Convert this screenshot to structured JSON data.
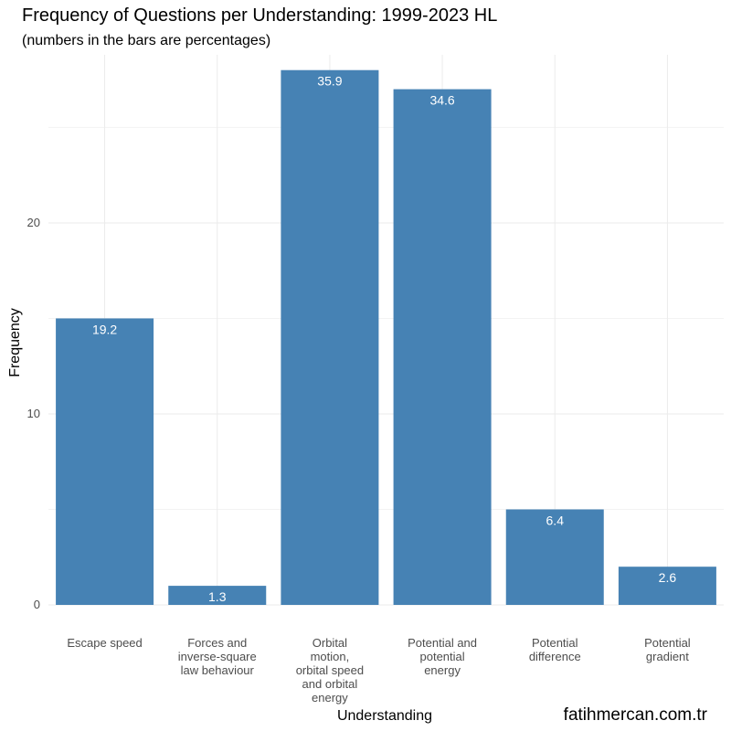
{
  "chart_data": {
    "type": "bar",
    "title": "Frequency of Questions per Understanding: 1999-2023 HL",
    "subtitle": "(numbers in the bars are percentages)",
    "xlabel": "Understanding",
    "ylabel": "Frequency",
    "categories": [
      [
        "Escape speed"
      ],
      [
        "Forces and",
        "inverse-square",
        "law behaviour"
      ],
      [
        "Orbital",
        "motion,",
        "orbital speed",
        "and orbital",
        "energy"
      ],
      [
        "Potential and",
        "potential",
        "energy"
      ],
      [
        "Potential",
        "difference"
      ],
      [
        "Potential",
        "gradient"
      ]
    ],
    "values": [
      15,
      1,
      28,
      27,
      5,
      2
    ],
    "bar_labels": [
      "19.2",
      "1.3",
      "35.9",
      "34.6",
      "6.4",
      "2.6"
    ],
    "ylim": [
      0,
      28.8
    ],
    "yticks": [
      0,
      10,
      20
    ],
    "ytick_labels": [
      "0",
      "10",
      "20"
    ],
    "grid": true,
    "bar_color": "#4682b4",
    "caption": "fatihmercan.com.tr"
  }
}
